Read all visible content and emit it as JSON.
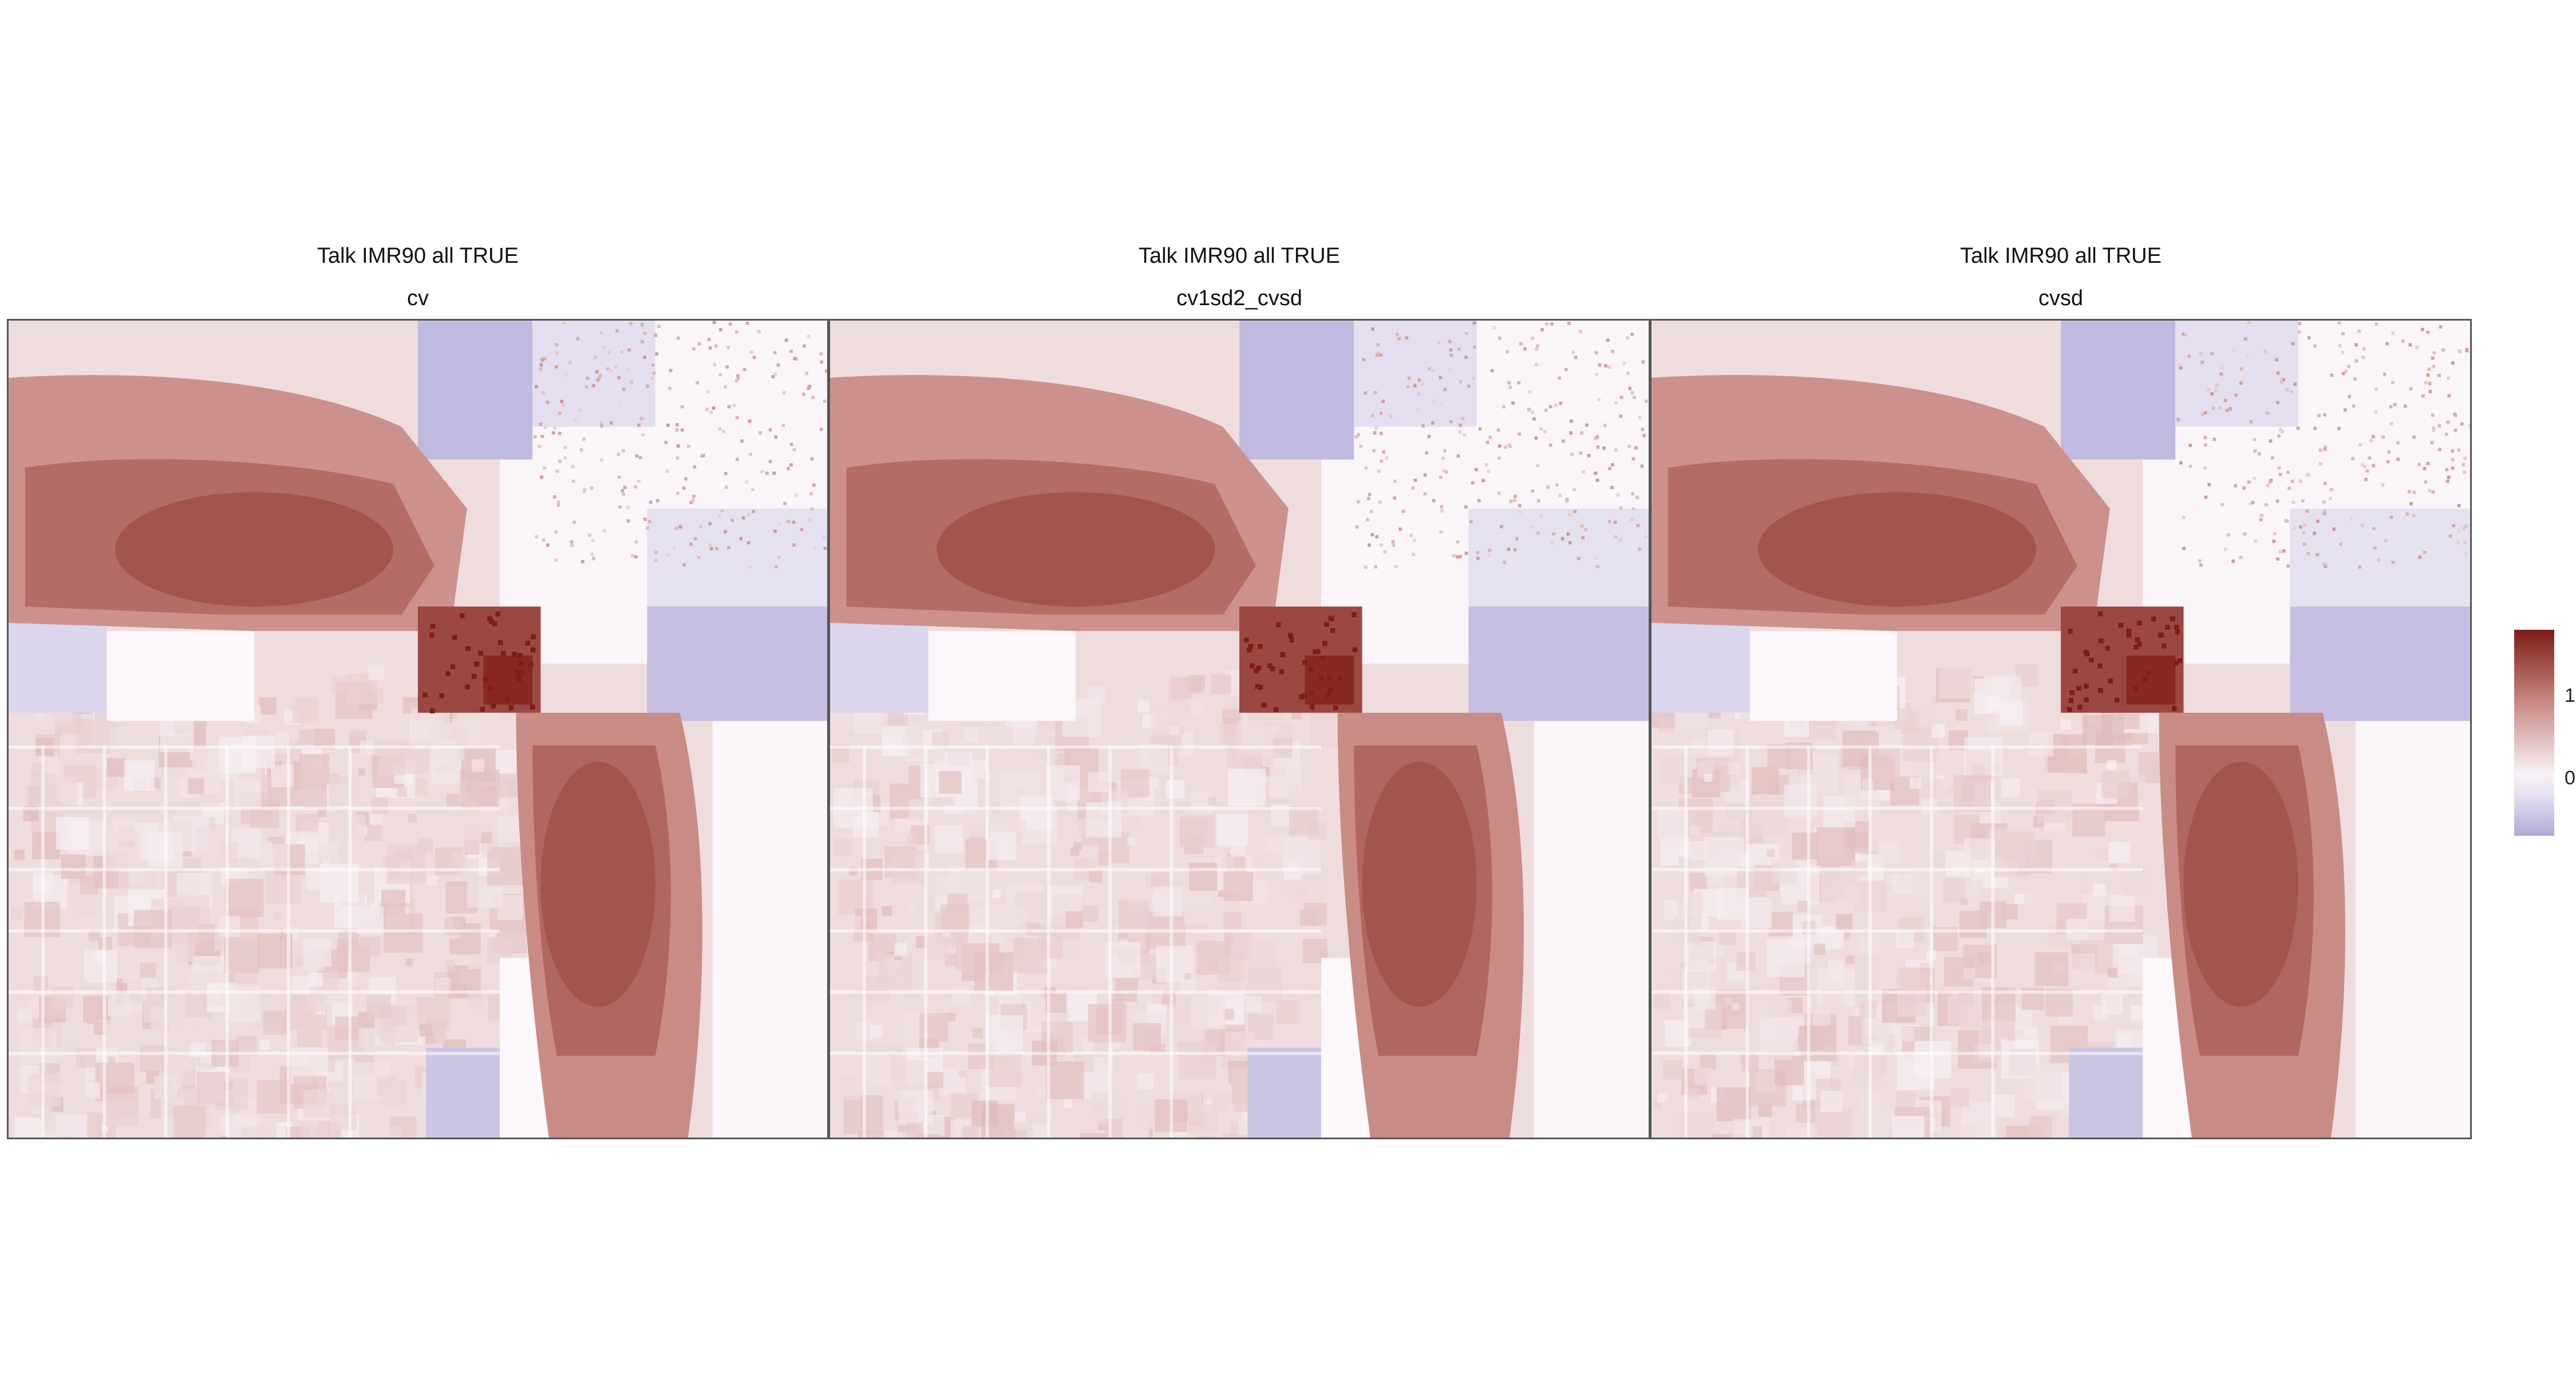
{
  "colors": {
    "high": "#7f1d16",
    "mid_high": "#c98b86",
    "zero": "#fbf7fb",
    "low": "#b1a9d8",
    "border": "#555555"
  },
  "panels": [
    {
      "title": "Talk IMR90 all TRUE",
      "subtitle": "cv",
      "variant": 0
    },
    {
      "title": "Talk IMR90 all TRUE",
      "subtitle": "cv1sd2_cvsd",
      "variant": 1
    },
    {
      "title": "Talk IMR90 all TRUE",
      "subtitle": "cvsd",
      "variant": 2
    }
  ],
  "legend": {
    "ticks": [
      "1",
      "0"
    ],
    "tick_values": [
      1,
      0
    ],
    "range": [
      -0.7,
      1.8
    ]
  },
  "chart_data": [
    {
      "type": "heatmap",
      "title": "Talk IMR90 all TRUE",
      "subtitle": "cv",
      "color_scale": {
        "min": -0.7,
        "mid": 0,
        "max": 1.8,
        "colors": [
          "#b1a9d8",
          "#fbf7fb",
          "#7f1d16"
        ]
      },
      "features": [
        {
          "type": "band",
          "value": 1.3
        },
        {
          "type": "band",
          "value": 1.25
        },
        {
          "type": "hotspot",
          "value": 1.8
        },
        {
          "type": "block",
          "value": -0.55
        }
      ]
    },
    {
      "type": "heatmap",
      "title": "Talk IMR90 all TRUE",
      "subtitle": "cv1sd2_cvsd",
      "color_scale": {
        "min": -0.7,
        "mid": 0,
        "max": 1.8,
        "colors": [
          "#b1a9d8",
          "#fbf7fb",
          "#7f1d16"
        ]
      },
      "features": [
        {
          "type": "band",
          "value": 1.3
        },
        {
          "type": "band",
          "value": 1.25
        },
        {
          "type": "hotspot",
          "value": 1.8
        },
        {
          "type": "block",
          "value": -0.55
        }
      ]
    },
    {
      "type": "heatmap",
      "title": "Talk IMR90 all TRUE",
      "subtitle": "cvsd",
      "color_scale": {
        "min": -0.7,
        "mid": 0,
        "max": 1.8,
        "colors": [
          "#b1a9d8",
          "#fbf7fb",
          "#7f1d16"
        ]
      },
      "features": [
        {
          "type": "band",
          "value": 1.3
        },
        {
          "type": "band",
          "value": 1.25
        },
        {
          "type": "hotspot",
          "value": 1.8
        },
        {
          "type": "block",
          "value": -0.55
        }
      ]
    }
  ]
}
